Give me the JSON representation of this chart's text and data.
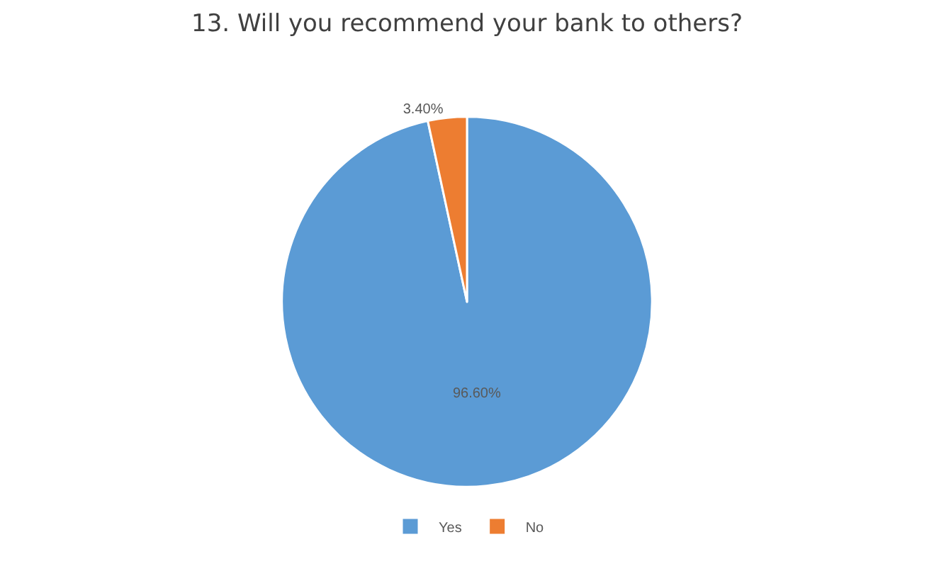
{
  "chart_data": {
    "type": "pie",
    "title": "13. Will you recommend your bank to others?",
    "categories": [
      "Yes",
      "No"
    ],
    "values": [
      96.6,
      3.4
    ],
    "colors": [
      "#5b9bd5",
      "#ed7d31"
    ],
    "value_labels": [
      "96.60%",
      "3.40%"
    ],
    "legend": "bottom"
  }
}
